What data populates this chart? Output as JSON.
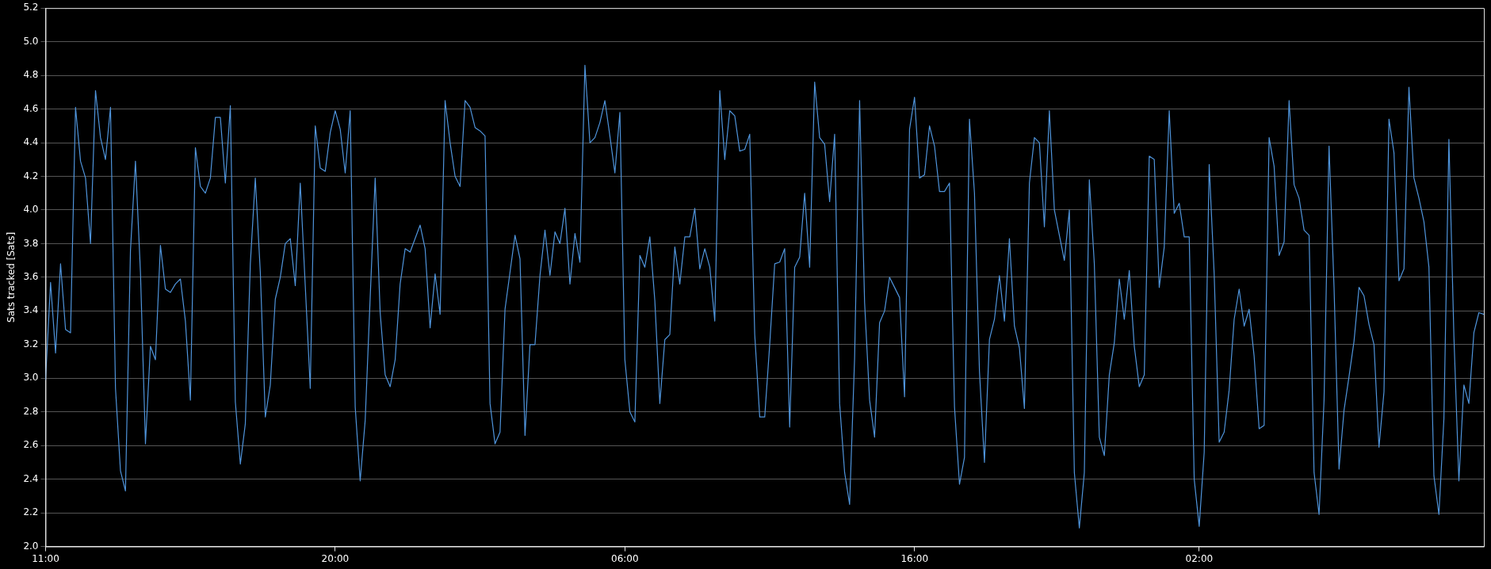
{
  "chart_data": {
    "type": "line",
    "ylabel": "Sats tracked [Sats]",
    "categories": [
      "11:00",
      null,
      null,
      null,
      null,
      null,
      null,
      null,
      null,
      null,
      null,
      null,
      null,
      null,
      null,
      null,
      null,
      null,
      null,
      null,
      null,
      null,
      null,
      null,
      null,
      null,
      null,
      null,
      null,
      null,
      null,
      null,
      null,
      null,
      null,
      null,
      null,
      null,
      null,
      null,
      null,
      null,
      null,
      null,
      null,
      null,
      null,
      null,
      null,
      null,
      null,
      null,
      null,
      null,
      null,
      null,
      null,
      null,
      "20:00",
      null,
      null,
      null,
      null,
      null,
      null,
      null,
      null,
      null,
      null,
      null,
      null,
      null,
      null,
      null,
      null,
      null,
      null,
      null,
      null,
      null,
      null,
      null,
      null,
      null,
      null,
      null,
      null,
      null,
      null,
      null,
      null,
      null,
      null,
      null,
      null,
      null,
      null,
      null,
      null,
      null,
      null,
      null,
      null,
      null,
      null,
      null,
      null,
      null,
      null,
      null,
      null,
      null,
      null,
      null,
      null,
      null,
      "06:00",
      null,
      null,
      null,
      null,
      null,
      null,
      null,
      null,
      null,
      null,
      null,
      null,
      null,
      null,
      null,
      null,
      null,
      null,
      null,
      null,
      null,
      null,
      null,
      null,
      null,
      null,
      null,
      null,
      null,
      null,
      null,
      null,
      null,
      null,
      null,
      null,
      null,
      null,
      null,
      null,
      null,
      null,
      null,
      null,
      null,
      null,
      null,
      null,
      null,
      null,
      null,
      null,
      null,
      null,
      null,
      null,
      null,
      "16:00",
      null,
      null,
      null,
      null,
      null,
      null,
      null,
      null,
      null,
      null,
      null,
      null,
      null,
      null,
      null,
      null,
      null,
      null,
      null,
      null,
      null,
      null,
      null,
      null,
      null,
      null,
      null,
      null,
      null,
      null,
      null,
      null,
      null,
      null,
      null,
      null,
      null,
      null,
      null,
      null,
      null,
      null,
      null,
      null,
      null,
      null,
      null,
      null,
      null,
      null,
      null,
      null,
      null,
      null,
      null,
      null,
      "02:00",
      null,
      null,
      null,
      null,
      null,
      null,
      null,
      null,
      null,
      null,
      null,
      null,
      null,
      null,
      null,
      null,
      null,
      null,
      null,
      null,
      null,
      null,
      null,
      null,
      null,
      null,
      null,
      null,
      null,
      null,
      null,
      null,
      null,
      null,
      null,
      null,
      null,
      null,
      null,
      null,
      null,
      null,
      null,
      null,
      null,
      null,
      null,
      null,
      null,
      null,
      null,
      null,
      null,
      null,
      null,
      null,
      null
    ],
    "ylim": [
      2.0,
      5.2
    ],
    "yticks": [
      {
        "value": 2.0,
        "label": "2.0"
      },
      {
        "value": 2.2,
        "label": "2.2"
      },
      {
        "value": 2.4,
        "label": "2.4"
      },
      {
        "value": 2.6,
        "label": "2.6"
      },
      {
        "value": 2.8,
        "label": "2.8"
      },
      {
        "value": 3.0,
        "label": "3.0"
      },
      {
        "value": 3.2,
        "label": "3.2"
      },
      {
        "value": 3.4,
        "label": "3.4"
      },
      {
        "value": 3.6,
        "label": "3.6"
      },
      {
        "value": 3.8,
        "label": "3.8"
      },
      {
        "value": 4.0,
        "label": "4.0"
      },
      {
        "value": 4.2,
        "label": "4.2"
      },
      {
        "value": 4.4,
        "label": "4.4"
      },
      {
        "value": 4.6,
        "label": "4.6"
      },
      {
        "value": 4.8,
        "label": "4.8"
      },
      {
        "value": 5.0,
        "label": "5.0"
      },
      {
        "value": 5.2,
        "label": "5.2"
      }
    ],
    "grid": "y",
    "legend": false,
    "marker": "none",
    "line_style": "solid",
    "series": [
      {
        "color": "#4f94db",
        "values": [
          2.99,
          3.57,
          3.15,
          3.68,
          3.29,
          3.27,
          4.61,
          4.29,
          4.19,
          3.8,
          4.71,
          4.43,
          4.3,
          4.61,
          2.94,
          2.45,
          2.33,
          3.76,
          4.29,
          3.63,
          2.61,
          3.19,
          3.11,
          3.79,
          3.53,
          3.51,
          3.56,
          3.59,
          3.34,
          2.87,
          4.37,
          4.14,
          4.1,
          4.19,
          4.55,
          4.55,
          4.16,
          4.62,
          2.86,
          2.49,
          2.73,
          3.68,
          4.19,
          3.63,
          2.77,
          2.96,
          3.47,
          3.6,
          3.8,
          3.83,
          3.55,
          4.16,
          3.55,
          2.94,
          4.5,
          4.25,
          4.23,
          4.46,
          4.59,
          4.48,
          4.22,
          4.59,
          2.83,
          2.39,
          2.75,
          3.48,
          4.19,
          3.39,
          3.02,
          2.95,
          3.11,
          3.56,
          3.77,
          3.75,
          3.83,
          3.91,
          3.77,
          3.3,
          3.62,
          3.38,
          4.65,
          4.4,
          4.2,
          4.14,
          4.65,
          4.61,
          4.49,
          4.47,
          4.44,
          2.85,
          2.61,
          2.68,
          3.41,
          3.63,
          3.85,
          3.71,
          2.66,
          3.2,
          3.2,
          3.61,
          3.88,
          3.61,
          3.87,
          3.8,
          4.01,
          3.56,
          3.86,
          3.69,
          4.86,
          4.4,
          4.43,
          4.52,
          4.65,
          4.44,
          4.22,
          4.58,
          3.11,
          2.8,
          2.74,
          3.73,
          3.66,
          3.84,
          3.46,
          2.85,
          3.23,
          3.26,
          3.78,
          3.56,
          3.84,
          3.84,
          4.01,
          3.65,
          3.77,
          3.66,
          3.34,
          4.71,
          4.3,
          4.59,
          4.56,
          4.35,
          4.36,
          4.45,
          3.26,
          2.77,
          2.77,
          3.2,
          3.68,
          3.69,
          3.77,
          2.71,
          3.66,
          3.72,
          4.1,
          3.66,
          4.76,
          4.43,
          4.39,
          4.05,
          4.45,
          2.85,
          2.44,
          2.25,
          3.12,
          4.65,
          3.45,
          2.87,
          2.65,
          3.33,
          3.4,
          3.6,
          3.54,
          3.48,
          2.89,
          4.48,
          4.67,
          4.19,
          4.21,
          4.5,
          4.38,
          4.11,
          4.11,
          4.16,
          2.83,
          2.37,
          2.53,
          4.54,
          4.1,
          3.04,
          2.5,
          3.23,
          3.35,
          3.61,
          3.34,
          3.83,
          3.31,
          3.18,
          2.82,
          4.16,
          4.43,
          4.4,
          3.9,
          4.59,
          4.0,
          3.85,
          3.7,
          4.0,
          2.44,
          2.11,
          2.44,
          4.18,
          3.68,
          2.65,
          2.54,
          3.02,
          3.21,
          3.59,
          3.35,
          3.64,
          3.19,
          2.95,
          3.02,
          4.32,
          4.3,
          3.54,
          3.78,
          4.59,
          3.98,
          4.04,
          3.84,
          3.84,
          2.4,
          2.12,
          2.56,
          4.27,
          3.62,
          2.62,
          2.68,
          2.93,
          3.35,
          3.53,
          3.31,
          3.41,
          3.13,
          2.7,
          2.72,
          4.43,
          4.26,
          3.73,
          3.81,
          4.65,
          4.15,
          4.07,
          3.88,
          3.85,
          2.44,
          2.19,
          2.87,
          4.38,
          3.54,
          2.46,
          2.81,
          3.01,
          3.22,
          3.54,
          3.49,
          3.32,
          3.2,
          2.59,
          2.92,
          4.54,
          4.34,
          3.58,
          3.65,
          4.73,
          4.19,
          4.07,
          3.93,
          3.66,
          2.42,
          2.19,
          2.76,
          4.42,
          3.25,
          2.39,
          2.96,
          2.85,
          3.27,
          3.39,
          3.38
        ]
      }
    ]
  }
}
